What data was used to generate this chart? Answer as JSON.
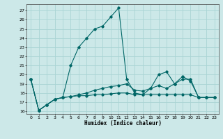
{
  "xlabel": "Humidex (Indice chaleur)",
  "bg_color": "#cce8e8",
  "grid_color": "#aad4d4",
  "line_color": "#006666",
  "xlim": [
    -0.5,
    23.5
  ],
  "ylim": [
    15.7,
    27.7
  ],
  "yticks": [
    16,
    17,
    18,
    19,
    20,
    21,
    22,
    23,
    24,
    25,
    26,
    27
  ],
  "xticks": [
    0,
    1,
    2,
    3,
    4,
    5,
    6,
    7,
    8,
    9,
    10,
    11,
    12,
    13,
    14,
    15,
    16,
    17,
    18,
    19,
    20,
    21,
    22,
    23
  ],
  "line1_x": [
    0,
    1,
    2,
    3,
    4,
    5,
    6,
    7,
    8,
    9,
    10,
    11,
    12,
    13,
    14,
    15,
    16,
    17,
    18,
    19,
    20,
    21,
    22,
    23
  ],
  "line1_y": [
    19.5,
    16.1,
    16.7,
    17.3,
    17.5,
    17.6,
    17.7,
    17.7,
    17.8,
    17.8,
    17.9,
    18.0,
    18.0,
    17.8,
    17.8,
    17.8,
    17.8,
    17.8,
    17.8,
    17.8,
    17.8,
    17.5,
    17.5,
    17.5
  ],
  "line2_x": [
    0,
    1,
    2,
    3,
    4,
    5,
    6,
    7,
    8,
    9,
    10,
    11,
    12,
    13,
    14,
    15,
    16,
    17,
    18,
    19,
    20,
    21,
    22,
    23
  ],
  "line2_y": [
    19.5,
    16.1,
    16.7,
    17.3,
    17.5,
    21.0,
    23.0,
    24.0,
    25.0,
    25.3,
    26.3,
    27.3,
    19.5,
    18.0,
    17.8,
    18.5,
    20.0,
    20.3,
    19.0,
    19.8,
    19.3,
    17.5,
    17.5,
    17.5
  ],
  "line3_x": [
    0,
    1,
    2,
    3,
    4,
    5,
    6,
    7,
    8,
    9,
    10,
    11,
    12,
    13,
    14,
    15,
    16,
    17,
    18,
    19,
    20,
    21,
    22,
    23
  ],
  "line3_y": [
    19.5,
    16.1,
    16.7,
    17.3,
    17.5,
    17.6,
    17.8,
    18.0,
    18.3,
    18.5,
    18.7,
    18.8,
    19.0,
    18.3,
    18.2,
    18.5,
    18.8,
    18.5,
    19.0,
    19.5,
    19.5,
    17.5,
    17.5,
    17.5
  ]
}
